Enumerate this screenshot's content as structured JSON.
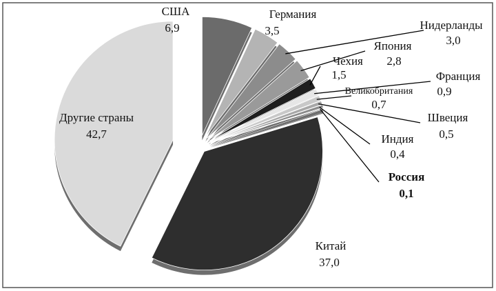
{
  "chart_data": {
    "type": "pie",
    "categories": [
      "США",
      "Германия",
      "Нидерланды",
      "Япония",
      "Чехия",
      "Франция",
      "Великобритания",
      "Швеция",
      "Индия",
      "Россия",
      "Китай",
      "Другие страны"
    ],
    "values": [
      6.9,
      3.5,
      3.0,
      2.8,
      1.5,
      0.9,
      0.7,
      0.5,
      0.4,
      0.1,
      37.0,
      42.7
    ],
    "value_labels": [
      "6,9",
      "3,5",
      "3,0",
      "2,8",
      "1,5",
      "0,9",
      "0,7",
      "0,5",
      "0,4",
      "0,1",
      "37,0",
      "42,7"
    ],
    "colors": [
      "#6b6b6b",
      "#b4b4b4",
      "#8c8c8c",
      "#9a9a9a",
      "#1e1e1e",
      "#e6e6e6",
      "#c8c8c8",
      "#a8a8a8",
      "#8a8a8a",
      "#555555",
      "#2e2e2e",
      "#dadada"
    ]
  }
}
